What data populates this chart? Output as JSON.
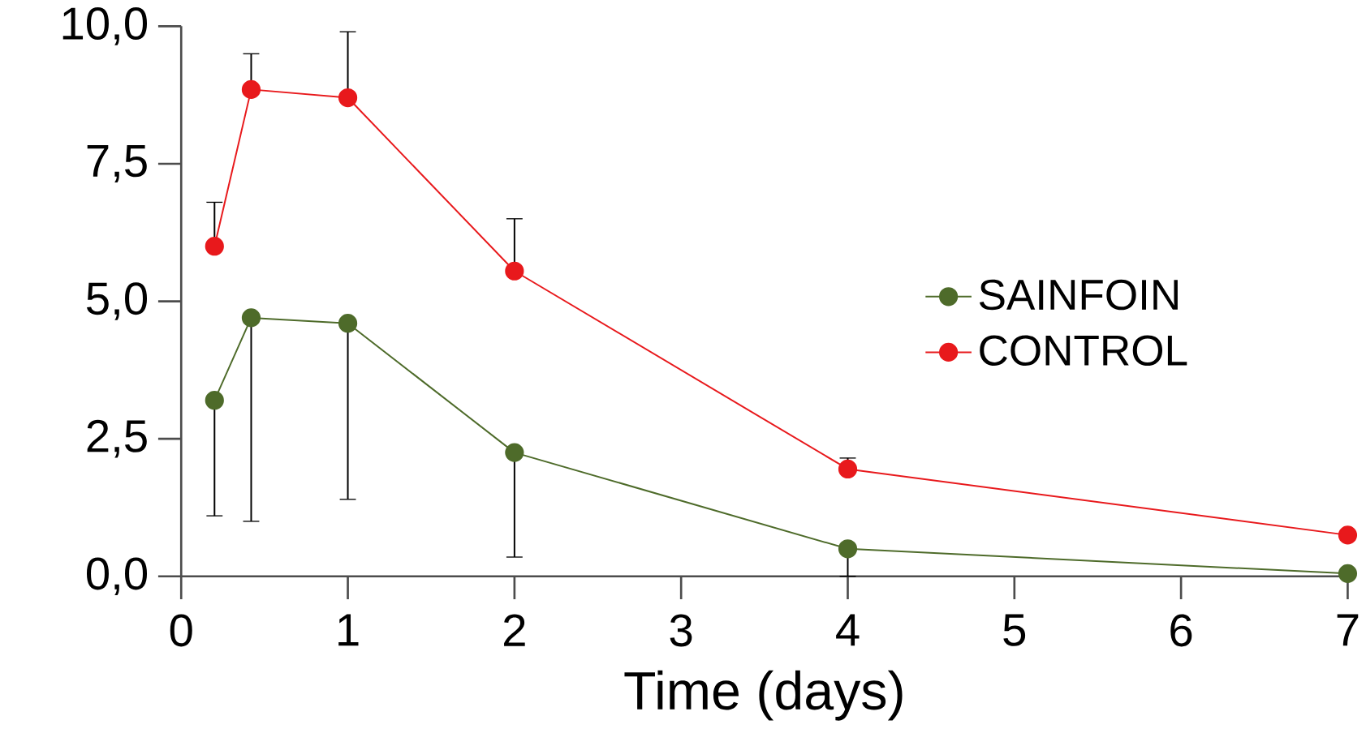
{
  "chart_data": {
    "type": "line",
    "xlabel": "Time (days)",
    "x": [
      0.2,
      0.42,
      1,
      2,
      4,
      7
    ],
    "series": [
      {
        "name": "SAINFOIN",
        "color": "#4e6b2a",
        "values": [
          3.2,
          4.7,
          4.6,
          2.25,
          0.5,
          0.05
        ],
        "errors": [
          [
            1.1,
            3.2
          ],
          [
            1.0,
            4.7
          ],
          [
            1.4,
            4.6
          ],
          [
            0.35,
            2.25
          ],
          [
            0.0,
            0.5
          ],
          null
        ]
      },
      {
        "name": "CONTROL",
        "color": "#e8191c",
        "values": [
          6.0,
          8.85,
          8.7,
          5.55,
          1.95,
          0.75
        ],
        "errors": [
          [
            6.0,
            6.8
          ],
          [
            8.85,
            9.5
          ],
          [
            8.7,
            9.9
          ],
          [
            5.55,
            6.5
          ],
          [
            1.95,
            2.15
          ],
          null
        ]
      }
    ],
    "xlim": [
      0,
      7
    ],
    "ylim": [
      0,
      10
    ],
    "xticks": [
      0,
      1,
      2,
      3,
      4,
      5,
      6,
      7
    ],
    "yticks": [
      {
        "value": 0,
        "label": "0,0"
      },
      {
        "value": 2.5,
        "label": "2,5"
      },
      {
        "value": 5,
        "label": "5,0"
      },
      {
        "value": 7.5,
        "label": "7,5"
      },
      {
        "value": 10,
        "label": "10,0"
      }
    ],
    "legend": "right",
    "marker": "circle",
    "line_style": "solid",
    "grid": false
  }
}
